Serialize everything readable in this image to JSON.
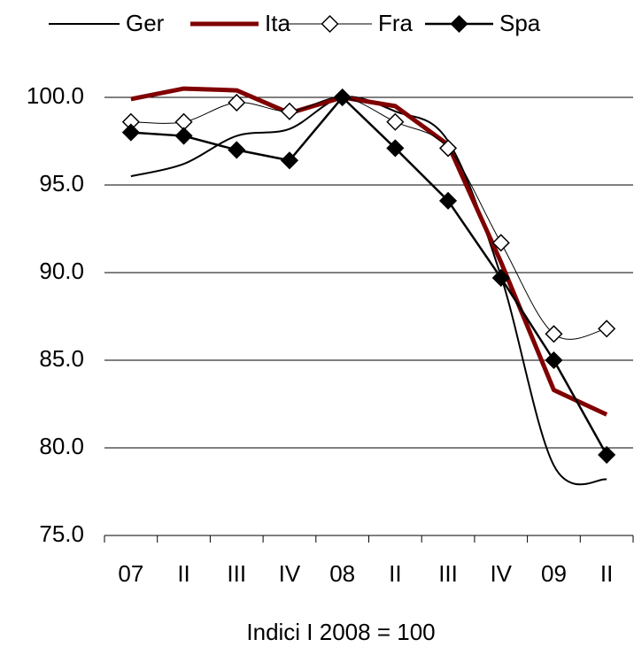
{
  "chart_data": {
    "type": "line",
    "x_label": "Indici I 2008 = 100",
    "categories": [
      "07",
      "II",
      "III",
      "IV",
      "08",
      "II",
      "III",
      "IV",
      "09",
      "II"
    ],
    "series": [
      {
        "name": "Ger",
        "color": "#000000",
        "line_width": 2,
        "smooth": true,
        "marker": "none",
        "values": [
          95.5,
          96.2,
          97.8,
          98.2,
          100.0,
          99.2,
          97.5,
          89.8,
          79.0,
          78.2
        ]
      },
      {
        "name": "Ita",
        "color": "#800000",
        "line_width": 5,
        "smooth": false,
        "marker": "none",
        "values": [
          99.9,
          100.5,
          100.4,
          99.1,
          100.0,
          99.5,
          97.3,
          90.6,
          83.3,
          81.9
        ]
      },
      {
        "name": "Fra",
        "color": "#000000",
        "line_width": 1,
        "smooth": true,
        "marker": "diamond-open",
        "values": [
          98.6,
          98.6,
          99.7,
          99.2,
          100.0,
          98.6,
          97.1,
          91.7,
          86.5,
          86.8
        ]
      },
      {
        "name": "Spa",
        "color": "#000000",
        "line_width": 2.5,
        "smooth": false,
        "marker": "diamond-filled",
        "values": [
          98.0,
          97.8,
          97.0,
          96.4,
          100.0,
          97.1,
          94.1,
          89.7,
          85.0,
          79.6
        ]
      }
    ],
    "ylim": [
      75,
      100
    ],
    "yticks": [
      {
        "value": 75,
        "label": "75.0"
      },
      {
        "value": 80,
        "label": "80.0"
      },
      {
        "value": 85,
        "label": "85.0"
      },
      {
        "value": 90,
        "label": "90.0"
      },
      {
        "value": 95,
        "label": "95.0"
      },
      {
        "value": 100,
        "label": "100.0"
      }
    ],
    "grid": true
  }
}
